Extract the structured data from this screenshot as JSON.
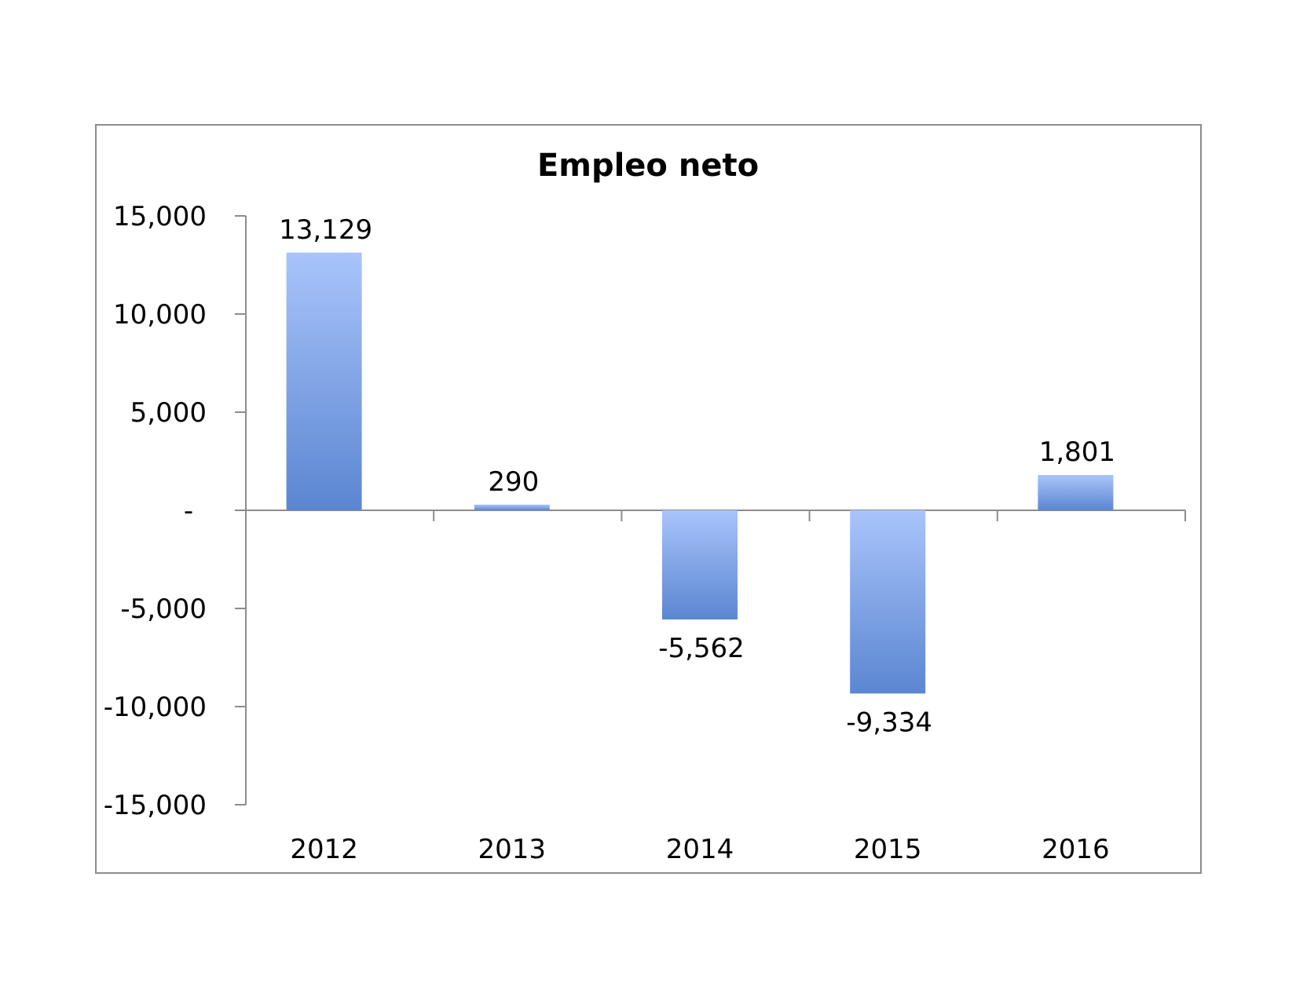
{
  "chart_data": {
    "type": "bar",
    "title": "Empleo neto",
    "xlabel": "",
    "ylabel": "",
    "categories": [
      "2012",
      "2013",
      "2014",
      "2015",
      "2016"
    ],
    "values": [
      13129,
      290,
      -5562,
      -9334,
      1801
    ],
    "data_labels": [
      "13,129",
      "290",
      "-5,562",
      "-9,334",
      "1,801"
    ],
    "ylim": [
      -15000,
      15000
    ],
    "yticks": [
      15000,
      10000,
      5000,
      0,
      -5000,
      -10000,
      -15000
    ],
    "ytick_labels": [
      "15,000",
      "10,000",
      "5,000",
      "-",
      "-5,000",
      "-10,000",
      "-15,000"
    ],
    "grid": false,
    "legend": "none",
    "bar_color_top": "#a9c4fb",
    "bar_color_bottom": "#5b86d1"
  }
}
